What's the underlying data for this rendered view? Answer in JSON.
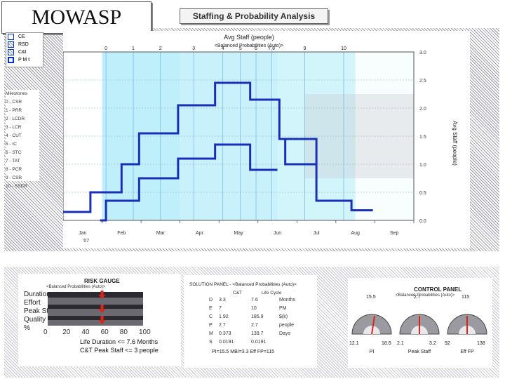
{
  "logo": "MOWASP",
  "window_title": "Staffing & Probability Analysis",
  "legend": [
    {
      "label": "CE",
      "color": "#ffffff"
    },
    {
      "label": "RSD",
      "color": "#9a9aa6"
    },
    {
      "label": "C&I",
      "color": "#9a9aa6"
    },
    {
      "label": "P M t",
      "color": "#0033cc"
    }
  ],
  "milestones": {
    "heading": "Milestones",
    "items": [
      "0 - CSR",
      "1 - PRR",
      "2 - LCDR",
      "3 - LCR",
      "4 - CUT",
      "5 - IC",
      "6 - STC",
      "7 - TAT",
      "8 - PCR",
      "9 - CSR",
      "10 - SSCR"
    ]
  },
  "chart_data": {
    "type": "line",
    "title": "Avg Staff (people)",
    "subtitle": "<Balanced Probabilities (Auto)>",
    "ylabel": "Avg Staff (people)",
    "ylim": [
      0,
      3.0
    ],
    "yticks": [
      0.0,
      0.5,
      1.0,
      1.5,
      2.0,
      2.5,
      3.0
    ],
    "yticklabels": [
      "0.0",
      "0.5",
      "1.0",
      "1.5",
      "2.0",
      "2.5",
      "3.0"
    ],
    "xlim": [
      0,
      9
    ],
    "x_month_labels": [
      "Jan",
      "Feb",
      "Mar",
      "Apr",
      "May",
      "Jun",
      "Jul",
      "Aug",
      "Sep"
    ],
    "x_year_label": "'07",
    "milestone_markers": [
      {
        "label": "0",
        "x": 1.1
      },
      {
        "label": "1",
        "x": 1.8
      },
      {
        "label": "2",
        "x": 2.5
      },
      {
        "label": "3",
        "x": 3.35
      },
      {
        "label": "4",
        "x": 4.1
      },
      {
        "label": "5",
        "x": 4.55
      },
      {
        "label": "6",
        "x": 4.95
      },
      {
        "label": "7,8",
        "x": 5.35
      },
      {
        "label": "9",
        "x": 6.2
      },
      {
        "label": "10",
        "x": 7.2
      }
    ],
    "probability_bands": [
      {
        "x0": 1.0,
        "x1": 3.0,
        "level": 1.0
      },
      {
        "x0": 3.0,
        "x1": 5.5,
        "level": 0.85
      },
      {
        "x0": 5.5,
        "x1": 7.5,
        "level": 0.7
      },
      {
        "x0": 7.5,
        "x1": 9.0,
        "level": 0.1
      }
    ],
    "series": [
      {
        "values_x": [
          0,
          0.7,
          0.7,
          1.5,
          1.5,
          1.95,
          1.95,
          2.95,
          2.95,
          3.9,
          3.9,
          4.8,
          4.8,
          5.55,
          5.55,
          6.5,
          6.5,
          7.4,
          7.4,
          7.95
        ],
        "values_y": [
          0.15,
          0.15,
          0.5,
          0.5,
          1.0,
          1.0,
          1.55,
          1.55,
          2.05,
          2.05,
          2.45,
          2.45,
          2.15,
          2.15,
          1.45,
          1.45,
          0.35,
          0.35,
          0.18,
          0.18
        ]
      },
      {
        "values_x": [
          0.95,
          1.1,
          1.1,
          1.95,
          1.95,
          2.95,
          2.95,
          3.9,
          3.9,
          4.8,
          4.8,
          5.5
        ],
        "values_y": [
          0.0,
          0.0,
          0.35,
          0.35,
          0.75,
          0.75,
          1.1,
          1.1,
          1.35,
          1.35,
          0.9,
          0.9
        ]
      },
      {
        "values_x": [
          5.55,
          5.7,
          5.7,
          6.5
        ],
        "values_y": [
          1.45,
          1.45,
          1.0,
          1.0
        ]
      }
    ]
  },
  "risk_gauge": {
    "title": "RISK GAUGE",
    "subtitle": "<Balanced Probabilities (Auto)>",
    "rows": [
      "Duration",
      "Effort",
      "Peak Staff",
      "Quality"
    ],
    "percent_label": "%",
    "ticks": [
      "0",
      "20",
      "40",
      "60",
      "80",
      "100"
    ],
    "arrow_values": [
      57,
      57,
      57
    ],
    "life_duration": "Life Duration <= 7.6 Months",
    "peak_staff": "C&T Peak Staff <= 3 people"
  },
  "solution_panel": {
    "title": "SOLUTION PANEL - <Balanced Probabilities (Auto)>",
    "col_headers": [
      "C&T",
      "Life Cycle"
    ],
    "rows": [
      {
        "k": "D",
        "a": "3.3",
        "b": "7.6",
        "u": "Months"
      },
      {
        "k": "E",
        "a": "7",
        "b": "10",
        "u": "PM"
      },
      {
        "k": "C",
        "a": "1.92",
        "b": "185.9",
        "u": "$(k)"
      },
      {
        "k": "P",
        "a": "2.7",
        "b": "2.7",
        "u": "people"
      },
      {
        "k": "M",
        "a": "0.373",
        "b": "139.7",
        "u": "Days"
      },
      {
        "k": "S",
        "a": "0.0191",
        "b": "0.0191",
        "u": ""
      }
    ],
    "footer": "PI=15.5   MBI=3.3   Eff FP=115"
  },
  "control_panel": {
    "title": "CONTROL PANEL",
    "subtitle": "<Balanced Probabilities (Auto)>",
    "gauges": [
      {
        "label": "PI",
        "top": "15.5",
        "min": "12.1",
        "max": "18.6",
        "value": 0.55
      },
      {
        "label": "Peak Staff",
        "top": "2.7",
        "min": "2.1",
        "max": "3.2",
        "value": 0.5
      },
      {
        "label": "Eff FP",
        "top": "115",
        "min": "92",
        "max": "138",
        "value": 0.5
      }
    ]
  }
}
